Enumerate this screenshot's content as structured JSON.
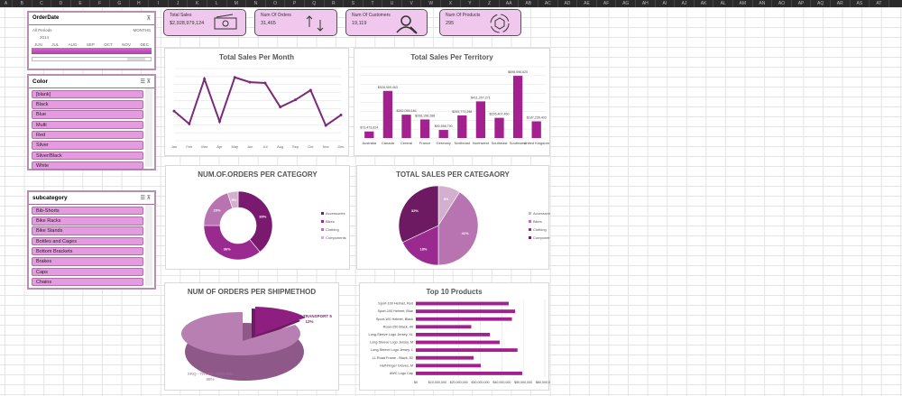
{
  "columns": [
    "A",
    "B",
    "C",
    "D",
    "E",
    "F",
    "G",
    "H",
    "I",
    "J",
    "K",
    "L",
    "M",
    "N",
    "O",
    "P",
    "Q",
    "R",
    "S",
    "T",
    "U",
    "V",
    "W",
    "X",
    "Y",
    "Z",
    "AA",
    "AB",
    "AC",
    "AD",
    "AE",
    "AF",
    "AG",
    "AH",
    "AI",
    "AJ",
    "AK",
    "AL",
    "AM",
    "AN",
    "AO",
    "AP",
    "AQ",
    "AR",
    "AS",
    "AT"
  ],
  "orderdate": {
    "title": "OrderDate",
    "filter": "All Periods",
    "period": "MONTHS",
    "year": "2014",
    "months": [
      "JUN",
      "JUL",
      "AUG",
      "SEP",
      "OCT",
      "NOV",
      "DEC"
    ]
  },
  "color": {
    "title": "Color",
    "items": [
      "[blank]",
      "Black",
      "Blue",
      "Multi",
      "Red",
      "Silver",
      "Silver/Black",
      "White"
    ]
  },
  "subcategory": {
    "title": "subcategory",
    "items": [
      "Bib-Shorts",
      "Bike Racks",
      "Bike Stands",
      "Bottles and Cages",
      "Bottom Brackets",
      "Brakes",
      "Caps",
      "Chains"
    ]
  },
  "kpis": [
    {
      "label": "Total Sales",
      "value": "$2,928,979,124",
      "icon": "money-icon"
    },
    {
      "label": "Num Of Orders",
      "value": "31,465",
      "icon": "up-down-arrows-icon"
    },
    {
      "label": "Num Of Customers",
      "value": "19,119",
      "icon": "customer-search-icon"
    },
    {
      "label": "Num Of Products",
      "value": "295",
      "icon": "product-cycle-icon"
    }
  ],
  "accent": "#9b1f8f",
  "chart_data": [
    {
      "type": "line",
      "title": "Total Sales Per Month",
      "categories": [
        "Jan",
        "Feb",
        "Mar",
        "Apr",
        "May",
        "Jun",
        "Jul",
        "Aug",
        "Sep",
        "Oct",
        "Nov",
        "Dec"
      ],
      "values": [
        3.7,
        2.1,
        7.7,
        2.4,
        7.9,
        7.3,
        7.2,
        4.2,
        5.1,
        6.3,
        1.9,
        3.2
      ],
      "ylim": [
        0,
        9
      ],
      "grid": true,
      "color": "#7a2a7a"
    },
    {
      "type": "bar",
      "title": "Total Sales Per Territory",
      "categories": [
        "Australia",
        "Canada",
        "Central",
        "France",
        "Germany",
        "Northeast",
        "Northwest",
        "Southeast",
        "Southwest",
        "United Kingdom"
      ],
      "values": [
        73473624,
        528909463,
        262099146,
        208158288,
        90558790,
        253771298,
        411207271,
        226407460,
        698096620,
        187236403
      ],
      "labels": [
        "$73,473,624",
        "$528,909,463",
        "$262,099,146",
        "$208,158,288",
        "$90,558,790",
        "$253,771,298",
        "$411,207,271",
        "$226,407,460",
        "$698,096,620",
        "$187,236,403"
      ],
      "ylim": [
        0,
        800000000
      ],
      "grid": true,
      "color": "#a3208f"
    },
    {
      "type": "pie",
      "variant": "donut",
      "title": "NUM.OF.ORDERS PER CATEGORY",
      "categories": [
        "Accessories",
        "Bikes",
        "Clothing",
        "Components"
      ],
      "values": [
        39,
        36,
        20,
        5
      ],
      "labels": [
        "39%",
        "36%",
        "20%",
        "5%"
      ],
      "colors": [
        "#7a1a6f",
        "#9a2a90",
        "#b774b0",
        "#d4b0d0"
      ],
      "legend": "right"
    },
    {
      "type": "pie",
      "title": "TOTAL SALES PER CATEGAORY",
      "categories": [
        "Accessories",
        "Bikes",
        "Clothing",
        "Components"
      ],
      "values": [
        9,
        41,
        18,
        32
      ],
      "labels": [
        "9%",
        "41%",
        "18%",
        "32%"
      ],
      "colors": [
        "#d4b0d0",
        "#b774b0",
        "#9a2a90",
        "#6e1a62"
      ],
      "legend": "right"
    },
    {
      "type": "pie",
      "variant": "3d",
      "title": "NUM OF ORDERS PER SHIPMETHOD",
      "categories": [
        "CARGO TRANSPORT 5",
        "XRQ - TRUCK GROUND"
      ],
      "values": [
        12,
        88
      ],
      "labels": [
        "CARGO TRANSPORT 5\n12%",
        "XRQ - TRUCK GROUND\n88%"
      ],
      "colors": [
        "#8e1f80",
        "#b87fb2"
      ]
    },
    {
      "type": "bar",
      "orientation": "horizontal",
      "title": "Top 10 Products",
      "categories": [
        "Sport-100 Helmet, Red",
        "Sport-100 Helmet, Blue",
        "Sport-100 Helmet, Black",
        "Road-250 Black, 44",
        "Long-Sleeve Logo Jersey, XL",
        "Long-Sleeve Logo Jersey, M",
        "Long-Sleeve Logo Jersey, L",
        "LL Road Frame - Black, 52",
        "Half-Finger Gloves, M",
        "AWC Logo Cap"
      ],
      "values": [
        43200000,
        46200000,
        44700000,
        25800000,
        34500000,
        39000000,
        47300000,
        26900000,
        30200000,
        49500000
      ],
      "xticks": [
        "$0",
        "$10,000,000",
        "$20,000,000",
        "$30,000,000",
        "$40,000,000",
        "$50,000,000",
        "$60,000,000"
      ],
      "xlim": [
        0,
        60000000
      ],
      "grid": true,
      "color": "#a3208f"
    }
  ]
}
